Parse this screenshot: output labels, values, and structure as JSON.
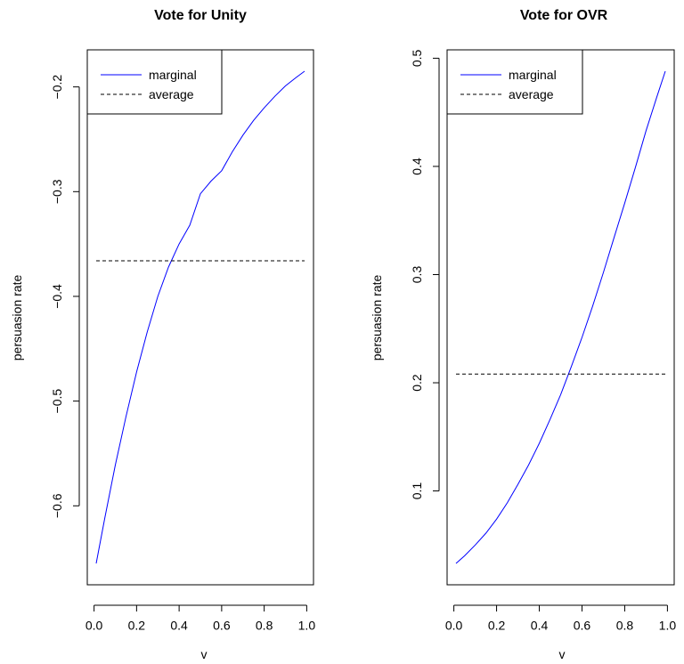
{
  "chart_data": [
    {
      "type": "line",
      "title": "Vote for Unity",
      "xlabel": "v",
      "ylabel": "persuasion rate",
      "xlim": [
        0.01,
        0.99
      ],
      "ylim": [
        -0.655,
        -0.185
      ],
      "xticks": [
        0.0,
        0.2,
        0.4,
        0.6,
        0.8,
        1.0
      ],
      "xtick_labels": [
        "0.0",
        "0.2",
        "0.4",
        "0.6",
        "0.8",
        "1.0"
      ],
      "yticks": [
        -0.6,
        -0.5,
        -0.4,
        -0.3,
        -0.2
      ],
      "ytick_labels": [
        "−0.6",
        "−0.5",
        "−0.4",
        "−0.3",
        "−0.2"
      ],
      "legend_position": "top-left",
      "series": [
        {
          "name": "marginal",
          "style": "solid",
          "color": "#0000ff",
          "x": [
            0.01,
            0.05,
            0.1,
            0.15,
            0.2,
            0.25,
            0.3,
            0.35,
            0.4,
            0.45,
            0.5,
            0.55,
            0.6,
            0.65,
            0.7,
            0.75,
            0.8,
            0.85,
            0.9,
            0.95,
            0.99
          ],
          "y": [
            -0.655,
            -0.612,
            -0.561,
            -0.515,
            -0.472,
            -0.434,
            -0.4,
            -0.372,
            -0.35,
            -0.332,
            -0.302,
            -0.29,
            -0.28,
            -0.262,
            -0.246,
            -0.232,
            -0.22,
            -0.209,
            -0.199,
            -0.191,
            -0.185
          ]
        },
        {
          "name": "average",
          "style": "dashed",
          "color": "#000000",
          "x": [
            0.01,
            0.99
          ],
          "y": [
            -0.366,
            -0.366
          ]
        }
      ]
    },
    {
      "type": "line",
      "title": "Vote for OVR",
      "xlabel": "v",
      "ylabel": "persuasion rate",
      "xlim": [
        0.01,
        0.99
      ],
      "ylim": [
        0.033,
        0.488
      ],
      "xticks": [
        0.0,
        0.2,
        0.4,
        0.6,
        0.8,
        1.0
      ],
      "xtick_labels": [
        "0.0",
        "0.2",
        "0.4",
        "0.6",
        "0.8",
        "1.0"
      ],
      "yticks": [
        0.1,
        0.2,
        0.3,
        0.4,
        0.5
      ],
      "ytick_labels": [
        "0.1",
        "0.2",
        "0.3",
        "0.4",
        "0.5"
      ],
      "legend_position": "top-left",
      "series": [
        {
          "name": "marginal",
          "style": "solid",
          "color": "#0000ff",
          "x": [
            0.01,
            0.05,
            0.1,
            0.15,
            0.2,
            0.25,
            0.3,
            0.35,
            0.4,
            0.45,
            0.5,
            0.55,
            0.6,
            0.65,
            0.7,
            0.75,
            0.8,
            0.85,
            0.9,
            0.95,
            0.99
          ],
          "y": [
            0.033,
            0.04,
            0.05,
            0.061,
            0.074,
            0.089,
            0.106,
            0.124,
            0.144,
            0.166,
            0.189,
            0.215,
            0.242,
            0.271,
            0.302,
            0.334,
            0.366,
            0.399,
            0.433,
            0.464,
            0.488
          ]
        },
        {
          "name": "average",
          "style": "dashed",
          "color": "#000000",
          "x": [
            0.01,
            0.99
          ],
          "y": [
            0.208,
            0.208
          ]
        }
      ]
    }
  ]
}
